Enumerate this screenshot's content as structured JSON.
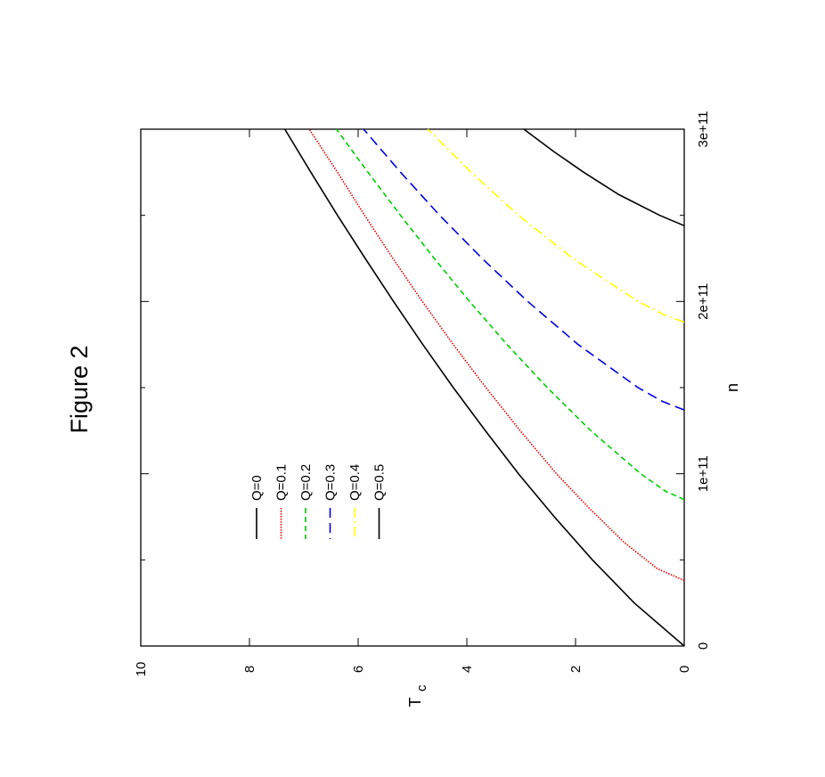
{
  "chart_data": {
    "type": "line",
    "title": "Figure 2",
    "xlabel": "n",
    "ylabel": "T",
    "ylabel_sub": "c",
    "xlim": [
      0,
      300000000000
    ],
    "ylim": [
      0,
      10
    ],
    "x_ticks": [
      {
        "value": 0,
        "label": "0"
      },
      {
        "value": 100000000000,
        "label": "1e+11"
      },
      {
        "value": 200000000000,
        "label": "2e+11"
      },
      {
        "value": 300000000000,
        "label": "3e+11"
      }
    ],
    "x_minor_ticks": [
      50000000000,
      150000000000,
      250000000000
    ],
    "y_ticks": [
      {
        "value": 0,
        "label": "0"
      },
      {
        "value": 2,
        "label": "2"
      },
      {
        "value": 4,
        "label": "4"
      },
      {
        "value": 6,
        "label": "6"
      },
      {
        "value": 8,
        "label": "8"
      },
      {
        "value": 10,
        "label": "10"
      }
    ],
    "orientation": "rotated 90 degrees counter-clockwise",
    "grid": false,
    "legend_position": "top-left",
    "series": [
      {
        "name": "Q=0",
        "color": "#000000",
        "dash": "solid",
        "x": [
          0,
          25000000000,
          50000000000,
          75000000000,
          100000000000,
          125000000000,
          150000000000,
          175000000000,
          200000000000,
          225000000000,
          250000000000,
          275000000000,
          300000000000
        ],
        "y": [
          0,
          0.92,
          1.69,
          2.39,
          3.05,
          3.66,
          4.25,
          4.81,
          5.35,
          5.87,
          6.38,
          6.87,
          7.35
        ]
      },
      {
        "name": "Q=0.1",
        "color": "#dd0000",
        "dash": "dotted",
        "x": [
          38000000000,
          45000000000,
          60000000000,
          80000000000,
          100000000000,
          125000000000,
          150000000000,
          175000000000,
          200000000000,
          225000000000,
          250000000000,
          275000000000,
          300000000000
        ],
        "y": [
          0,
          0.5,
          1.1,
          1.75,
          2.35,
          3.02,
          3.65,
          4.25,
          4.82,
          5.36,
          5.88,
          6.38,
          6.9
        ]
      },
      {
        "name": "Q=0.2",
        "color": "#00cc00",
        "dash": "dashed",
        "x": [
          85000000000,
          90000000000,
          100000000000,
          125000000000,
          150000000000,
          175000000000,
          200000000000,
          225000000000,
          250000000000,
          275000000000,
          300000000000
        ],
        "y": [
          0,
          0.35,
          0.8,
          1.72,
          2.52,
          3.26,
          3.95,
          4.6,
          5.22,
          5.82,
          6.4
        ]
      },
      {
        "name": "Q=0.3",
        "color": "#0000dd",
        "dash": "long-dashed",
        "x": [
          137000000000,
          142000000000,
          150000000000,
          175000000000,
          200000000000,
          225000000000,
          250000000000,
          275000000000,
          300000000000
        ],
        "y": [
          0,
          0.4,
          0.85,
          1.95,
          2.88,
          3.72,
          4.5,
          5.22,
          5.9
        ]
      },
      {
        "name": "Q=0.4",
        "color": "#ffff00",
        "dash": "dash-dot",
        "x": [
          188000000000,
          192000000000,
          200000000000,
          225000000000,
          250000000000,
          275000000000,
          300000000000
        ],
        "y": [
          0,
          0.35,
          0.85,
          2.05,
          3.05,
          3.92,
          4.72
        ]
      },
      {
        "name": "Q=0.5",
        "color": "#000000",
        "dash": "solid",
        "x": [
          244000000000,
          250000000000,
          262000000000,
          275000000000,
          287000000000,
          300000000000
        ],
        "y": [
          0,
          0.45,
          1.2,
          1.85,
          2.4,
          2.95
        ]
      }
    ]
  }
}
